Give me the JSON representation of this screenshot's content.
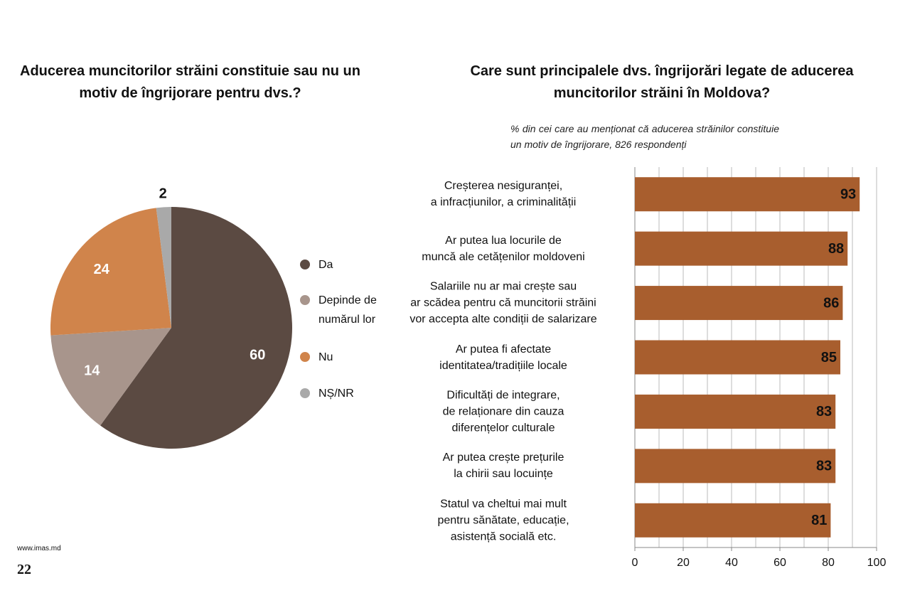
{
  "chart_data": [
    {
      "type": "pie",
      "title": "Aducerea muncitorilor străini constituie sau nu un motiv de îngrijorare pentru dvs.?",
      "categories": [
        "Da",
        "Depinde de numărul lor",
        "Nu",
        "NȘ/NR"
      ],
      "values": [
        60,
        14,
        24,
        2
      ],
      "colors": [
        "#5b4a42",
        "#a8958c",
        "#d0844b",
        "#a9a9a9"
      ],
      "legend": "right"
    },
    {
      "type": "barh",
      "title": "Care sunt principalele dvs. îngrijorări legate de aducerea muncitorilor străini în Moldova?",
      "subtitle": "% din cei care au menționat că aducerea străinilor constituie un motiv de îngrijorare, 826 respondenți",
      "categories": [
        "Creșterea nesiguranței,\na infracțiunilor, a criminalității",
        "Ar putea lua locurile de\nmuncă ale cetățenilor moldoveni",
        "Salariile nu ar mai crește sau\nar scădea pentru că muncitorii străini\nvor accepta alte condiții de salarizare",
        "Ar putea fi afectate\nidentitatea/tradițiile locale",
        "Dificultăți de integrare,\nde relaționare din cauza\ndiferențelor culturale",
        "Ar putea crește prețurile\nla chirii sau locuințe",
        "Statul va cheltui mai mult\npentru sănătate, educație,\nasistență socială etc."
      ],
      "values": [
        93,
        88,
        86,
        85,
        83,
        83,
        81
      ],
      "color": "#a85e2e",
      "xlim": [
        0,
        100
      ],
      "xticks": [
        0,
        20,
        40,
        60,
        80,
        100
      ],
      "minor_grid": [
        10,
        30,
        50,
        70,
        90
      ],
      "grid": true
    }
  ],
  "footer": {
    "source": "www.imas.md",
    "page": "22"
  }
}
